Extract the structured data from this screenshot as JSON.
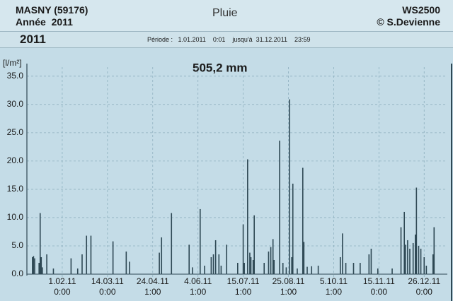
{
  "header": {
    "station": "MASNY (59176)",
    "year_label": "Année  2011",
    "title": "Pluie",
    "device": "WS2500",
    "author": "© S.Devienne",
    "year": "2011",
    "period": "Période :   1.01.2011    0:01    jusqu'à  31.12.2011    23:59"
  },
  "chart_data": {
    "type": "bar",
    "y_label": "[l/m²]",
    "annotation": "505,2 mm",
    "color": "#2e4854",
    "grid": true,
    "x": [
      5,
      6,
      7,
      11,
      12,
      13,
      14,
      18,
      24,
      40,
      46,
      50,
      54,
      58,
      78,
      90,
      93,
      120,
      122,
      131,
      147,
      150,
      157,
      161,
      167,
      169,
      171,
      174,
      176,
      181,
      191,
      196,
      197,
      200,
      202,
      203,
      205,
      206,
      215,
      219,
      221,
      223,
      224,
      229,
      232,
      235,
      238,
      240,
      241,
      245,
      250,
      251,
      254,
      258,
      264,
      284,
      286,
      289,
      296,
      302,
      310,
      312,
      318,
      331,
      339,
      342,
      343,
      345,
      347,
      350,
      352,
      353,
      355,
      357,
      360,
      362,
      368,
      369
    ],
    "values": [
      3.0,
      3.2,
      2.8,
      2.0,
      10.8,
      3.0,
      1.2,
      3.5,
      1.0,
      2.8,
      1.0,
      3.5,
      6.8,
      6.8,
      5.8,
      4.0,
      2.2,
      3.8,
      6.5,
      10.8,
      5.2,
      1.2,
      11.5,
      1.5,
      3.0,
      3.5,
      6.0,
      3.5,
      1.5,
      5.2,
      2.0,
      8.8,
      2.0,
      20.3,
      3.8,
      3.0,
      2.5,
      10.4,
      2.0,
      4.0,
      4.8,
      6.2,
      2.5,
      23.6,
      2.0,
      1.2,
      30.9,
      3.0,
      16.0,
      1.0,
      18.8,
      5.7,
      1.3,
      1.4,
      1.5,
      3.0,
      7.2,
      2.0,
      2.0,
      2.0,
      3.5,
      4.5,
      1.0,
      1.0,
      8.3,
      11.0,
      5.2,
      6.0,
      4.5,
      5.5,
      7.0,
      15.3,
      5.0,
      4.5,
      3.0,
      1.5,
      3.5,
      8.3
    ],
    "xlim": [
      1,
      381
    ],
    "ylim": [
      0,
      36.6
    ],
    "xticks": [
      {
        "value": 32,
        "label": "1.02.11\n0:00"
      },
      {
        "value": 73,
        "label": "14.03.11\n0:00"
      },
      {
        "value": 114,
        "label": "24.04.11\n1:00"
      },
      {
        "value": 155,
        "label": "4.06.11\n1:00"
      },
      {
        "value": 196,
        "label": "15.07.11\n1:00"
      },
      {
        "value": 237,
        "label": "25.08.11\n1:00"
      },
      {
        "value": 278,
        "label": "5.10.11\n1:00"
      },
      {
        "value": 319,
        "label": "15.11.11\n0:00"
      },
      {
        "value": 360,
        "label": "26.12.11\n0:00"
      }
    ],
    "yticks": [
      {
        "value": 0,
        "label": "0.0"
      },
      {
        "value": 5,
        "label": "5.0"
      },
      {
        "value": 10,
        "label": "10.0"
      },
      {
        "value": 15,
        "label": "15.0"
      },
      {
        "value": 20,
        "label": "20.0"
      },
      {
        "value": 25,
        "label": "25.0"
      },
      {
        "value": 30,
        "label": "30.0"
      },
      {
        "value": 35,
        "label": "35.0"
      }
    ]
  }
}
